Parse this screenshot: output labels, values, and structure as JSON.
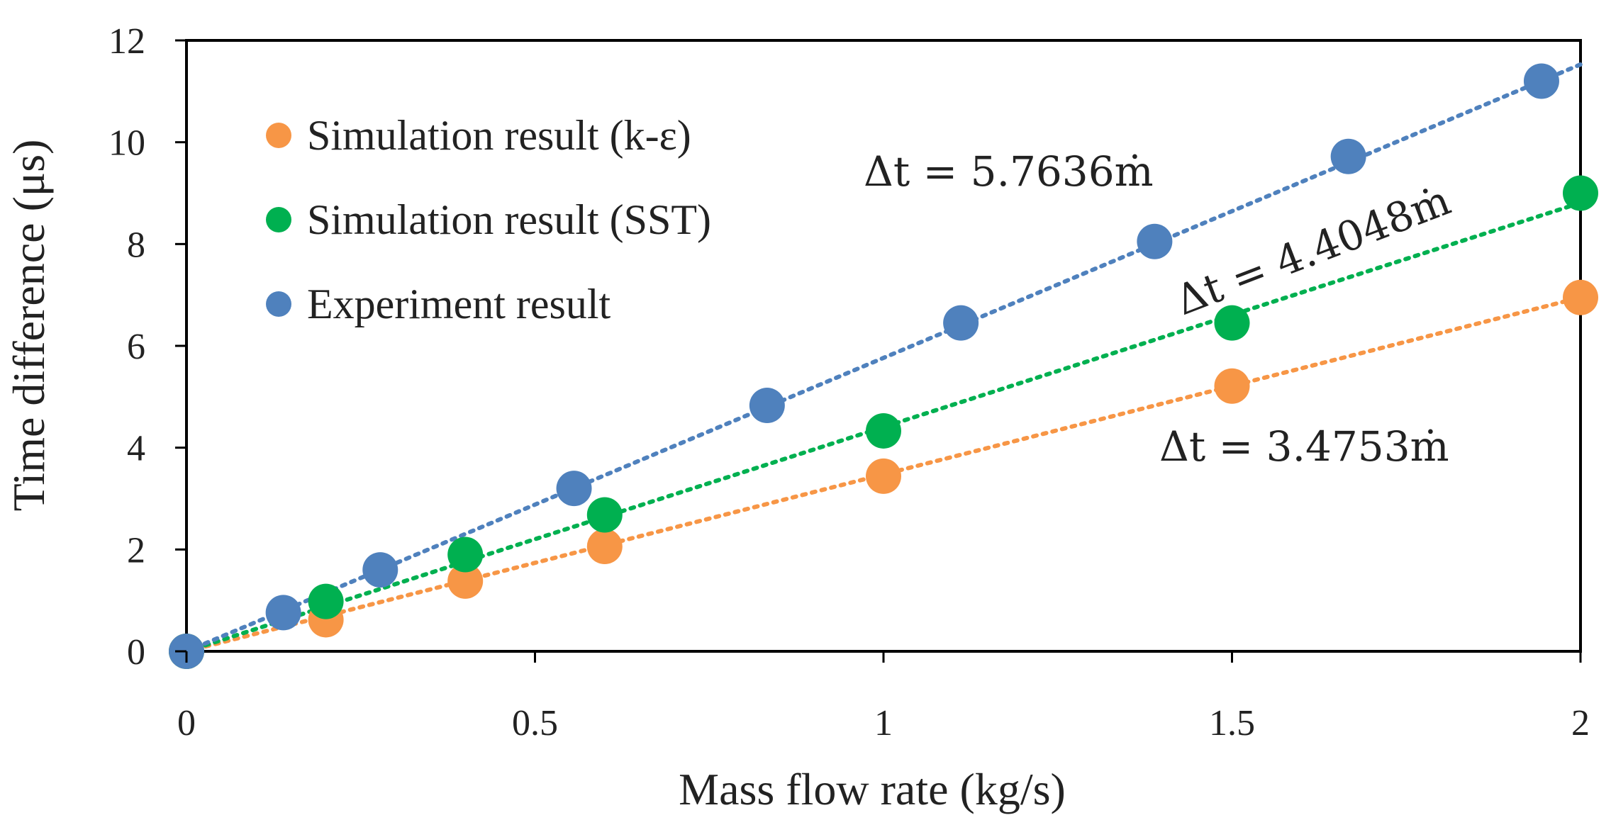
{
  "chart_data": {
    "type": "scatter",
    "title": "",
    "xlabel": "Mass flow rate (kg/s)",
    "ylabel": "Time difference (μs)",
    "xlim": [
      0,
      2
    ],
    "ylim": [
      0,
      12
    ],
    "x_ticks": [
      "0",
      "0.5",
      "1",
      "1.5",
      "2"
    ],
    "y_ticks": [
      "0",
      "2",
      "4",
      "6",
      "8",
      "10",
      "12"
    ],
    "grid": false,
    "legend_position": "top-left",
    "series": [
      {
        "name": "Simulation result (k-ε)",
        "color": "#F79646",
        "x": [
          0,
          0.2,
          0.4,
          0.6,
          1.0,
          1.5,
          2.0
        ],
        "y": [
          0,
          0.62,
          1.38,
          2.06,
          3.44,
          5.21,
          6.95
        ],
        "trendline_slope": 3.4753,
        "equation": "Δt = 3.4753ṁ"
      },
      {
        "name": "Simulation result (SST)",
        "color": "#00B050",
        "x": [
          0,
          0.2,
          0.4,
          0.6,
          1.0,
          1.5,
          2.0
        ],
        "y": [
          0,
          0.98,
          1.9,
          2.68,
          4.33,
          6.45,
          9.0
        ],
        "trendline_slope": 4.4048,
        "equation": "Δt = 4.4048ṁ"
      },
      {
        "name": "Experiment result",
        "color": "#4F81BD",
        "x": [
          0,
          0.139,
          0.278,
          0.556,
          0.833,
          1.111,
          1.389,
          1.667,
          1.944
        ],
        "y": [
          0,
          0.76,
          1.6,
          3.2,
          4.83,
          6.45,
          8.05,
          9.72,
          11.2
        ],
        "trendline_slope": 5.7636,
        "equation": "Δt = 5.7636ṁ"
      }
    ]
  }
}
